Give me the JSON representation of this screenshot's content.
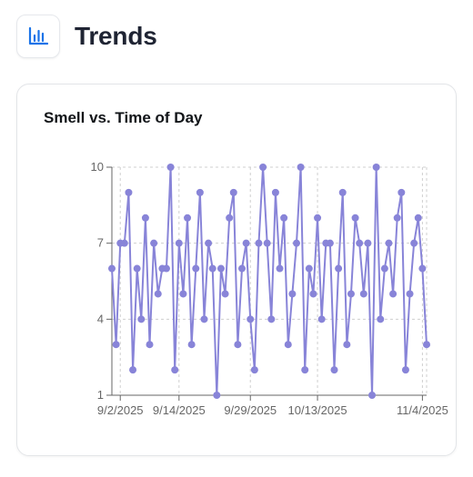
{
  "header": {
    "title": "Trends",
    "icon": "bar-chart-icon",
    "icon_color": "#1a73e8"
  },
  "card": {
    "title": "Smell vs. Time of Day"
  },
  "chart_data": {
    "type": "line",
    "title": "Smell vs. Time of Day",
    "xlabel": "",
    "ylabel": "",
    "ylim": [
      1,
      10
    ],
    "y_ticks": [
      "1",
      "4",
      "7",
      "10"
    ],
    "x_ticks": [
      "9/2/2025",
      "9/14/2025",
      "9/29/2025",
      "10/13/2025",
      "11/4/2025"
    ],
    "grid": true,
    "line_color": "#8884d8",
    "series": [
      {
        "values": [
          6,
          3,
          7,
          7,
          9,
          2,
          6,
          4,
          8,
          3,
          7,
          5,
          6,
          6,
          10,
          2,
          7,
          5,
          8,
          3,
          6,
          9,
          4,
          7,
          6,
          1,
          6,
          5,
          8,
          9,
          3,
          6,
          7,
          4,
          2,
          7,
          10,
          7,
          4,
          9,
          6,
          8,
          3,
          5,
          7,
          10,
          2,
          6,
          5,
          8,
          4,
          7,
          7,
          2,
          6,
          9,
          3,
          5,
          8,
          7,
          5,
          7,
          1,
          10,
          4,
          6,
          7,
          5,
          8,
          9,
          2,
          5,
          7,
          8,
          6,
          3
        ]
      }
    ]
  }
}
